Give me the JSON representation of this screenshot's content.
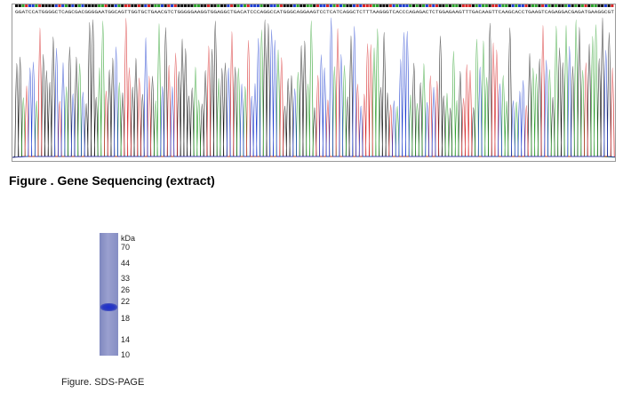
{
  "sequencing": {
    "caption": "Figure . Gene Sequencing (extract)",
    "trace_colors": {
      "A": "#2ca02c",
      "C": "#1f3fcf",
      "G": "#111111",
      "T": "#d62728"
    },
    "base_calls": "GGATCCATGGGGCTCAGCGACGGGGAATGGCAGTTGGTGCTGAACGTCTGGGGGAAGGTGGAGGCTGACATCCCAGGCCATGGGCAGGAAGTCCTCATCAGGCTCTTTAAGGGTCACCCAGAGACTCTGGAGAAGTTTGACAAGTTCAAGCACCTGAAGTCAGAGGACGAGATGAAGGCGT"
  },
  "sds_page": {
    "caption": "Figure. SDS-PAGE",
    "unit": "kDa",
    "markers": [
      "70",
      "44",
      "33",
      "26",
      "22",
      "18",
      "14",
      "10"
    ],
    "band_color": "#1d2fcf"
  }
}
